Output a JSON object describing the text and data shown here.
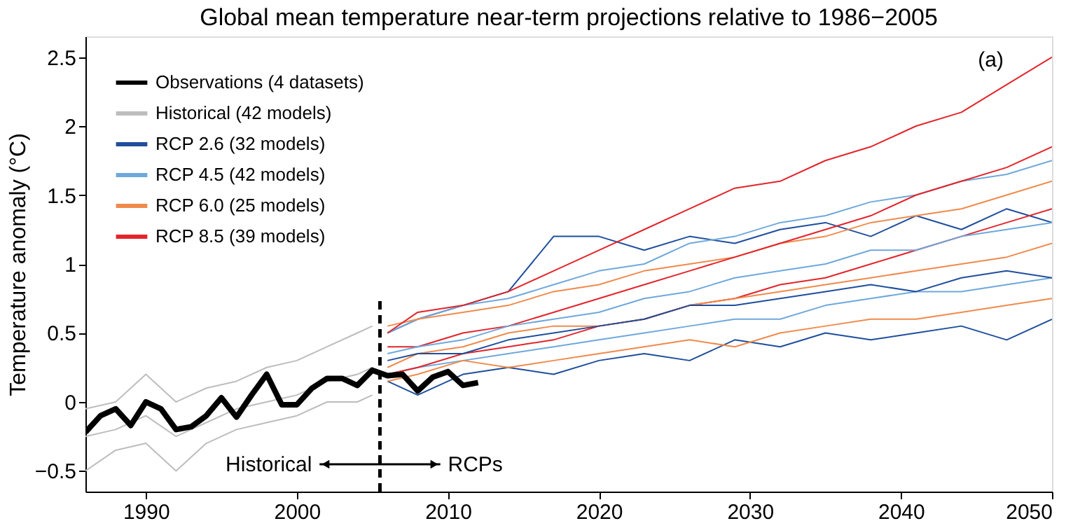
{
  "chart_data": {
    "type": "line",
    "title": "Global mean temperature near-term projections relative to 1986−2005",
    "ylabel": "Temperature anomaly (°C)",
    "xlim": [
      1986,
      2050
    ],
    "xticks": [
      1990,
      2000,
      2010,
      2020,
      2030,
      2040,
      2050
    ],
    "ylim": [
      -0.65,
      2.65
    ],
    "yticks": [
      -0.5,
      0,
      0.5,
      1,
      1.5,
      2,
      2.5
    ],
    "grid": false,
    "legend": "top left",
    "marker": "none",
    "line_style": "solid",
    "ref_lines": [
      {
        "axis": "x",
        "value": 2005.5,
        "color": "#000000",
        "line_style": "dashed"
      }
    ],
    "annotations": [
      "Historical",
      "RCPs",
      "(a)"
    ],
    "series": [
      {
        "name": "Observations (4 datasets)",
        "color": "#000000",
        "x": [
          1986,
          1987,
          1988,
          1989,
          1990,
          1991,
          1992,
          1993,
          1994,
          1995,
          1996,
          1997,
          1998,
          1999,
          2000,
          2001,
          2002,
          2003,
          2004,
          2005,
          2006,
          2007,
          2008,
          2009,
          2010,
          2011,
          2012
        ],
        "values": [
          -0.22,
          -0.1,
          -0.05,
          -0.17,
          0.0,
          -0.05,
          -0.2,
          -0.18,
          -0.1,
          0.03,
          -0.11,
          0.05,
          0.2,
          -0.02,
          -0.02,
          0.1,
          0.17,
          0.17,
          0.12,
          0.23,
          0.19,
          0.2,
          0.08,
          0.18,
          0.22,
          0.12,
          0.14
        ]
      },
      {
        "name": "Historical (42 models)",
        "color": "#bdbdbd",
        "x": [
          1986,
          1988,
          1990,
          1992,
          1994,
          1996,
          1998,
          2000,
          2002,
          2004,
          2005
        ],
        "values": [
          -0.25,
          -0.2,
          -0.1,
          -0.25,
          -0.15,
          -0.05,
          0.0,
          0.05,
          0.15,
          0.2,
          0.25
        ]
      },
      {
        "color": "#bdbdbd",
        "x": [
          1986,
          1988,
          1990,
          1992,
          1994,
          1996,
          1998,
          2000,
          2002,
          2004,
          2005
        ],
        "values": [
          -0.5,
          -0.35,
          -0.3,
          -0.5,
          -0.3,
          -0.2,
          -0.15,
          -0.1,
          0.0,
          0.0,
          0.05
        ]
      },
      {
        "color": "#bdbdbd",
        "x": [
          1986,
          1988,
          1990,
          1992,
          1994,
          1996,
          1998,
          2000,
          2002,
          2004,
          2005
        ],
        "values": [
          -0.05,
          0.0,
          0.2,
          0.0,
          0.1,
          0.15,
          0.25,
          0.3,
          0.4,
          0.5,
          0.55
        ]
      },
      {
        "name": "RCP 2.6 (32 models)",
        "color": "#1f4e9c",
        "x": [
          2006,
          2008,
          2011,
          2014,
          2017,
          2020,
          2023,
          2026,
          2029,
          2032,
          2035,
          2038,
          2041,
          2044,
          2047,
          2050
        ],
        "values": [
          0.3,
          0.35,
          0.35,
          0.45,
          0.5,
          0.55,
          0.6,
          0.7,
          0.7,
          0.75,
          0.8,
          0.85,
          0.8,
          0.9,
          0.95,
          0.9
        ]
      },
      {
        "color": "#1f4e9c",
        "x": [
          2006,
          2008,
          2011,
          2014,
          2017,
          2020,
          2023,
          2026,
          2029,
          2032,
          2035,
          2038,
          2041,
          2044,
          2047,
          2050
        ],
        "values": [
          0.15,
          0.05,
          0.2,
          0.25,
          0.2,
          0.3,
          0.35,
          0.3,
          0.45,
          0.4,
          0.5,
          0.45,
          0.5,
          0.55,
          0.45,
          0.6
        ]
      },
      {
        "color": "#1f4e9c",
        "x": [
          2006,
          2008,
          2011,
          2014,
          2017,
          2020,
          2023,
          2026,
          2029,
          2032,
          2035,
          2038,
          2041,
          2044,
          2047,
          2050
        ],
        "values": [
          0.5,
          0.6,
          0.7,
          0.8,
          1.2,
          1.2,
          1.1,
          1.2,
          1.15,
          1.25,
          1.3,
          1.2,
          1.35,
          1.25,
          1.4,
          1.3
        ]
      },
      {
        "name": "RCP 4.5 (42 models)",
        "color": "#6fa8dc",
        "x": [
          2006,
          2008,
          2011,
          2014,
          2017,
          2020,
          2023,
          2026,
          2029,
          2032,
          2035,
          2038,
          2041,
          2044,
          2047,
          2050
        ],
        "values": [
          0.35,
          0.4,
          0.45,
          0.55,
          0.6,
          0.65,
          0.75,
          0.8,
          0.9,
          0.95,
          1.0,
          1.1,
          1.1,
          1.2,
          1.25,
          1.3
        ]
      },
      {
        "color": "#6fa8dc",
        "x": [
          2006,
          2008,
          2011,
          2014,
          2017,
          2020,
          2023,
          2026,
          2029,
          2032,
          2035,
          2038,
          2041,
          2044,
          2047,
          2050
        ],
        "values": [
          0.2,
          0.25,
          0.3,
          0.35,
          0.4,
          0.45,
          0.5,
          0.55,
          0.6,
          0.6,
          0.7,
          0.75,
          0.8,
          0.8,
          0.85,
          0.9
        ]
      },
      {
        "color": "#6fa8dc",
        "x": [
          2006,
          2008,
          2011,
          2014,
          2017,
          2020,
          2023,
          2026,
          2029,
          2032,
          2035,
          2038,
          2041,
          2044,
          2047,
          2050
        ],
        "values": [
          0.5,
          0.6,
          0.7,
          0.75,
          0.85,
          0.95,
          1.0,
          1.15,
          1.2,
          1.3,
          1.35,
          1.45,
          1.5,
          1.6,
          1.65,
          1.75
        ]
      },
      {
        "name": "RCP 6.0 (25 models)",
        "color": "#f08a4b",
        "x": [
          2006,
          2008,
          2011,
          2014,
          2017,
          2020,
          2023,
          2026,
          2029,
          2032,
          2035,
          2038,
          2041,
          2044,
          2047,
          2050
        ],
        "values": [
          0.25,
          0.35,
          0.4,
          0.5,
          0.55,
          0.55,
          0.6,
          0.7,
          0.75,
          0.8,
          0.85,
          0.9,
          0.95,
          1.0,
          1.05,
          1.15
        ]
      },
      {
        "color": "#f08a4b",
        "x": [
          2006,
          2008,
          2011,
          2014,
          2017,
          2020,
          2023,
          2026,
          2029,
          2032,
          2035,
          2038,
          2041,
          2044,
          2047,
          2050
        ],
        "values": [
          0.15,
          0.2,
          0.3,
          0.25,
          0.3,
          0.35,
          0.4,
          0.45,
          0.4,
          0.5,
          0.55,
          0.6,
          0.6,
          0.65,
          0.7,
          0.75
        ]
      },
      {
        "color": "#f08a4b",
        "x": [
          2006,
          2008,
          2011,
          2014,
          2017,
          2020,
          2023,
          2026,
          2029,
          2032,
          2035,
          2038,
          2041,
          2044,
          2047,
          2050
        ],
        "values": [
          0.55,
          0.6,
          0.65,
          0.7,
          0.8,
          0.85,
          0.95,
          1.0,
          1.05,
          1.15,
          1.2,
          1.3,
          1.35,
          1.4,
          1.5,
          1.6
        ]
      },
      {
        "name": "RCP 8.5 (39 models)",
        "color": "#e3242b",
        "x": [
          2006,
          2008,
          2011,
          2014,
          2017,
          2020,
          2023,
          2026,
          2029,
          2032,
          2035,
          2038,
          2041,
          2044,
          2047,
          2050
        ],
        "values": [
          0.4,
          0.4,
          0.5,
          0.55,
          0.65,
          0.75,
          0.85,
          0.95,
          1.05,
          1.15,
          1.25,
          1.35,
          1.5,
          1.6,
          1.7,
          1.85
        ]
      },
      {
        "color": "#e3242b",
        "x": [
          2006,
          2008,
          2011,
          2014,
          2017,
          2020,
          2023,
          2026,
          2029,
          2032,
          2035,
          2038,
          2041,
          2044,
          2047,
          2050
        ],
        "values": [
          0.2,
          0.25,
          0.35,
          0.4,
          0.45,
          0.55,
          0.6,
          0.7,
          0.75,
          0.85,
          0.9,
          1.0,
          1.1,
          1.2,
          1.3,
          1.4
        ]
      },
      {
        "color": "#e3242b",
        "x": [
          2006,
          2008,
          2011,
          2014,
          2017,
          2020,
          2023,
          2026,
          2029,
          2032,
          2035,
          2038,
          2041,
          2044,
          2047,
          2050
        ],
        "values": [
          0.5,
          0.65,
          0.7,
          0.8,
          0.95,
          1.1,
          1.25,
          1.4,
          1.55,
          1.6,
          1.75,
          1.85,
          2.0,
          2.1,
          2.3,
          2.5
        ]
      }
    ]
  }
}
